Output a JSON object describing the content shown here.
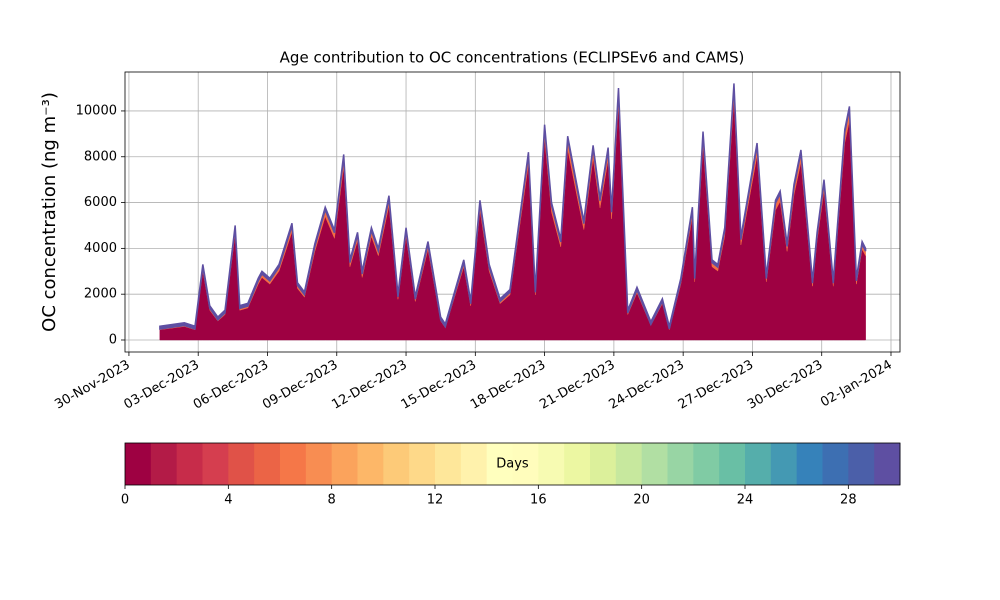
{
  "chart_data": {
    "type": "stacked_area",
    "title": "Age contribution to OC concentrations (ECLIPSEv6 and CAMS)",
    "y_label": "OC concentration (ng m⁻³)",
    "x": [
      1.34,
      2.4,
      2.86,
      3.2,
      3.5,
      3.85,
      4.16,
      4.6,
      4.8,
      5.15,
      5.6,
      5.76,
      6.1,
      6.5,
      7.06,
      7.3,
      7.6,
      8.05,
      8.5,
      8.9,
      9.3,
      9.57,
      9.9,
      10.1,
      10.5,
      10.8,
      11.26,
      11.65,
      12.0,
      12.4,
      12.95,
      13.5,
      13.7,
      14.5,
      14.8,
      15.2,
      15.6,
      16.07,
      16.5,
      17.3,
      17.6,
      18.0,
      18.3,
      18.7,
      19.0,
      19.45,
      19.7,
      20.1,
      20.4,
      20.75,
      20.9,
      21.2,
      21.6,
      22.0,
      22.6,
      23.1,
      23.4,
      23.9,
      24.4,
      24.5,
      24.86,
      25.25,
      25.5,
      25.8,
      26.2,
      26.5,
      27.2,
      27.6,
      28.0,
      28.2,
      28.5,
      28.8,
      29.1,
      29.6,
      29.8,
      30.1,
      30.5,
      31.0,
      31.2,
      31.5,
      31.75,
      31.9
    ],
    "series": [
      {
        "color": "#9e0142",
        "values": [
          450,
          590,
          450,
          3010,
          1300,
          830,
          1110,
          4630,
          1300,
          1400,
          2440,
          2730,
          2440,
          3010,
          4720,
          2250,
          1870,
          3870,
          5390,
          4440,
          7570,
          3200,
          4340,
          2730,
          4530,
          3680,
          5860,
          1780,
          4530,
          1680,
          3960,
          830,
          540,
          3200,
          1490,
          5670,
          3010,
          1590,
          1970,
          7670,
          1970,
          8810,
          5580,
          4060,
          8330,
          6050,
          4820,
          7950,
          5770,
          7860,
          5290,
          10330,
          1110,
          2060,
          640,
          1590,
          450,
          2440,
          5390,
          2540,
          8520,
          3200,
          3010,
          4530,
          10520,
          4150,
          8050,
          2540,
          5670,
          6050,
          3870,
          6340,
          7760,
          2350,
          4340,
          6530,
          2350,
          8620,
          9570,
          2440,
          3960,
          3680
        ]
      },
      {
        "color": "#f46d43",
        "values": [
          30,
          40,
          30,
          170,
          80,
          50,
          70,
          250,
          80,
          80,
          140,
          150,
          140,
          170,
          260,
          130,
          110,
          210,
          290,
          240,
          410,
          180,
          240,
          150,
          250,
          200,
          320,
          100,
          250,
          100,
          220,
          50,
          40,
          180,
          90,
          310,
          170,
          90,
          110,
          410,
          110,
          470,
          300,
          220,
          450,
          330,
          260,
          430,
          310,
          420,
          290,
          550,
          70,
          120,
          40,
          90,
          30,
          140,
          290,
          140,
          460,
          180,
          170,
          250,
          560,
          230,
          430,
          140,
          310,
          330,
          210,
          340,
          420,
          130,
          240,
          350,
          130,
          460,
          510,
          140,
          220,
          200
        ]
      },
      {
        "color": "#5e4fa2",
        "values": [
          120,
          120,
          120,
          120,
          120,
          120,
          120,
          120,
          120,
          120,
          120,
          120,
          120,
          120,
          120,
          120,
          120,
          120,
          120,
          120,
          120,
          120,
          120,
          120,
          120,
          120,
          120,
          120,
          120,
          120,
          120,
          120,
          120,
          120,
          120,
          120,
          120,
          120,
          120,
          120,
          120,
          120,
          120,
          120,
          120,
          120,
          120,
          120,
          120,
          120,
          120,
          120,
          120,
          120,
          120,
          120,
          120,
          120,
          120,
          120,
          120,
          120,
          120,
          120,
          120,
          120,
          120,
          120,
          120,
          120,
          120,
          120,
          120,
          120,
          120,
          120,
          120,
          120,
          120,
          120,
          120,
          120
        ]
      }
    ],
    "xlim": [
      -0.17,
      33.39
    ],
    "xticks": [
      {
        "value": 0,
        "label": "30-Nov-2023"
      },
      {
        "value": 3,
        "label": "03-Dec-2023"
      },
      {
        "value": 6,
        "label": "06-Dec-2023"
      },
      {
        "value": 9,
        "label": "09-Dec-2023"
      },
      {
        "value": 12,
        "label": "12-Dec-2023"
      },
      {
        "value": 15,
        "label": "15-Dec-2023"
      },
      {
        "value": 18,
        "label": "18-Dec-2023"
      },
      {
        "value": 21,
        "label": "21-Dec-2023"
      },
      {
        "value": 24,
        "label": "24-Dec-2023"
      },
      {
        "value": 27,
        "label": "27-Dec-2023"
      },
      {
        "value": 30,
        "label": "30-Dec-2023"
      },
      {
        "value": 33,
        "label": "02-Jan-2024"
      }
    ],
    "ylim": [
      -524,
      11700
    ],
    "yticks": [
      0,
      2000,
      4000,
      6000,
      8000,
      10000
    ],
    "grid": true,
    "colorbar": {
      "label": "Days",
      "lim": [
        0,
        30
      ],
      "ticks": [
        0,
        4,
        8,
        12,
        16,
        20,
        24,
        28
      ],
      "colors": [
        "#9e0142",
        "#b31b47",
        "#c72c4a",
        "#d53e4f",
        "#e05248",
        "#eb6446",
        "#f57748",
        "#f88d52",
        "#fba35c",
        "#fdb768",
        "#fdca78",
        "#fed989",
        "#fee79a",
        "#fff2ac",
        "#ffffbe",
        "#fffdbc",
        "#f7fbb2",
        "#ecf7a2",
        "#dcf09b",
        "#c7e89e",
        "#b1dfa3",
        "#98d5a4",
        "#80cba4",
        "#69bfa5",
        "#55aeab",
        "#4499b3",
        "#3682ba",
        "#3d6fb2",
        "#4b5fa9",
        "#5e4fa2"
      ]
    }
  }
}
